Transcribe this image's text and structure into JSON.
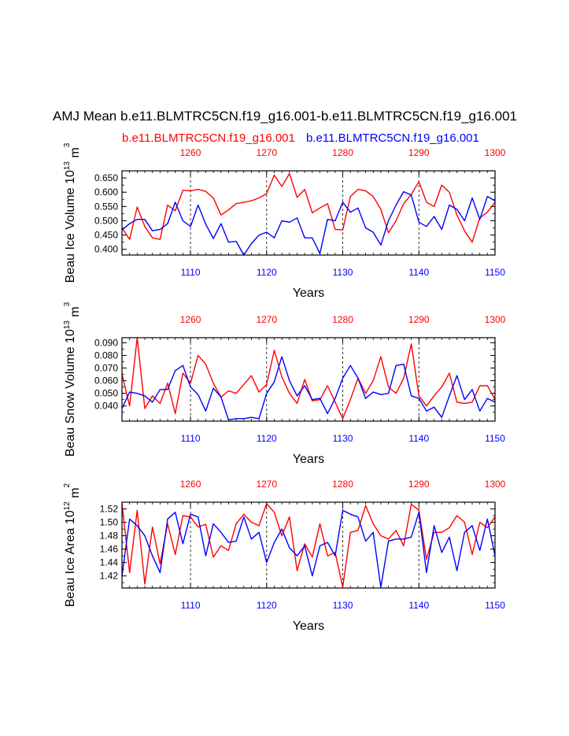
{
  "title": "AMJ Mean b.e11.BLMTRC5CN.f19_g16.001-b.e11.BLMTRC5CN.f19_g16.001",
  "legend": {
    "red_label": "b.e11.BLMTRC5CN.f19_g16.001",
    "blue_label": "b.e11.BLMTRC5CN.f19_g16.001"
  },
  "colors": {
    "red": "#ff0000",
    "blue": "#0000ff",
    "grid": "#000000"
  },
  "chart_data": [
    {
      "type": "line",
      "ylabel": "Beau Ice Volume 10",
      "ylabel_exp1": "13",
      "ylabel_unit": " m",
      "ylabel_exp2": "3",
      "xlabel": "Years",
      "ylim": [
        0.38,
        0.675
      ],
      "yticks": [
        0.4,
        0.45,
        0.5,
        0.55,
        0.6,
        0.65
      ],
      "ytick_labels": [
        "0.400",
        "0.450",
        "0.500",
        "0.550",
        "0.600",
        "0.650"
      ],
      "xlim_bottom": [
        1101,
        1150
      ],
      "xticks_bottom": [
        1110,
        1120,
        1130,
        1140,
        1150
      ],
      "xlim_top": [
        1251,
        1300
      ],
      "xticks_top": [
        1260,
        1270,
        1280,
        1290,
        1300
      ],
      "series": [
        {
          "name": "b.e11.BLMTRC5CN.f19_g16.001",
          "color": "red",
          "x": [
            1251,
            1252,
            1253,
            1254,
            1255,
            1256,
            1257,
            1258,
            1259,
            1260,
            1261,
            1262,
            1263,
            1264,
            1265,
            1266,
            1267,
            1268,
            1269,
            1270,
            1271,
            1272,
            1273,
            1274,
            1275,
            1276,
            1277,
            1278,
            1279,
            1280,
            1281,
            1282,
            1283,
            1284,
            1285,
            1286,
            1287,
            1288,
            1289,
            1290,
            1291,
            1292,
            1293,
            1294,
            1295,
            1296,
            1297,
            1298,
            1299,
            1300
          ],
          "y": [
            0.475,
            0.435,
            0.548,
            0.48,
            0.44,
            0.435,
            0.555,
            0.535,
            0.607,
            0.605,
            0.61,
            0.603,
            0.58,
            0.52,
            0.538,
            0.56,
            0.565,
            0.57,
            0.58,
            0.595,
            0.66,
            0.62,
            0.665,
            0.582,
            0.61,
            0.528,
            0.545,
            0.56,
            0.47,
            0.468,
            0.585,
            0.61,
            0.605,
            0.585,
            0.54,
            0.458,
            0.5,
            0.56,
            0.592,
            0.637,
            0.565,
            0.55,
            0.625,
            0.6,
            0.52,
            0.465,
            0.425,
            0.51,
            0.53,
            0.565
          ]
        },
        {
          "name": "b.e11.BLMTRC5CN.f19_g16.001",
          "color": "blue",
          "x": [
            1101,
            1102,
            1103,
            1104,
            1105,
            1106,
            1107,
            1108,
            1109,
            1110,
            1111,
            1112,
            1113,
            1114,
            1115,
            1116,
            1117,
            1118,
            1119,
            1120,
            1121,
            1122,
            1123,
            1124,
            1125,
            1126,
            1127,
            1128,
            1129,
            1130,
            1131,
            1132,
            1133,
            1134,
            1135,
            1136,
            1137,
            1138,
            1139,
            1140,
            1141,
            1142,
            1143,
            1144,
            1145,
            1146,
            1147,
            1148,
            1149,
            1150
          ],
          "y": [
            0.468,
            0.49,
            0.505,
            0.505,
            0.465,
            0.47,
            0.49,
            0.565,
            0.5,
            0.48,
            0.555,
            0.488,
            0.438,
            0.49,
            0.425,
            0.428,
            0.38,
            0.42,
            0.45,
            0.46,
            0.44,
            0.5,
            0.495,
            0.51,
            0.44,
            0.44,
            0.385,
            0.505,
            0.5,
            0.565,
            0.53,
            0.545,
            0.475,
            0.46,
            0.415,
            0.5,
            0.555,
            0.602,
            0.59,
            0.495,
            0.48,
            0.515,
            0.47,
            0.555,
            0.54,
            0.5,
            0.58,
            0.505,
            0.585,
            0.57
          ]
        }
      ]
    },
    {
      "type": "line",
      "ylabel": "Beau Snow Volume 10",
      "ylabel_exp1": "13",
      "ylabel_unit": " m",
      "ylabel_exp2": "3",
      "xlabel": "Years",
      "ylim": [
        0.028,
        0.094
      ],
      "yticks": [
        0.04,
        0.05,
        0.06,
        0.07,
        0.08,
        0.09
      ],
      "ytick_labels": [
        "0.040",
        "0.050",
        "0.060",
        "0.070",
        "0.080",
        "0.090"
      ],
      "xlim_bottom": [
        1101,
        1150
      ],
      "xticks_bottom": [
        1110,
        1120,
        1130,
        1140,
        1150
      ],
      "xlim_top": [
        1251,
        1300
      ],
      "xticks_top": [
        1260,
        1270,
        1280,
        1290,
        1300
      ],
      "series": [
        {
          "name": "b.e11.BLMTRC5CN.f19_g16.001",
          "color": "red",
          "x": [
            1251,
            1252,
            1253,
            1254,
            1255,
            1256,
            1257,
            1258,
            1259,
            1260,
            1261,
            1262,
            1263,
            1264,
            1265,
            1266,
            1267,
            1268,
            1269,
            1270,
            1271,
            1272,
            1273,
            1274,
            1275,
            1276,
            1277,
            1278,
            1279,
            1280,
            1281,
            1282,
            1283,
            1284,
            1285,
            1286,
            1287,
            1288,
            1289,
            1290,
            1291,
            1292,
            1293,
            1294,
            1295,
            1296,
            1297,
            1298,
            1299,
            1300
          ],
          "y": [
            0.065,
            0.04,
            0.094,
            0.038,
            0.048,
            0.042,
            0.058,
            0.034,
            0.066,
            0.058,
            0.08,
            0.073,
            0.058,
            0.047,
            0.052,
            0.05,
            0.057,
            0.064,
            0.051,
            0.057,
            0.084,
            0.063,
            0.05,
            0.042,
            0.061,
            0.044,
            0.045,
            0.056,
            0.043,
            0.03,
            0.045,
            0.062,
            0.05,
            0.06,
            0.079,
            0.055,
            0.05,
            0.062,
            0.089,
            0.048,
            0.04,
            0.048,
            0.055,
            0.066,
            0.043,
            0.042,
            0.043,
            0.056,
            0.056,
            0.045
          ]
        },
        {
          "name": "b.e11.BLMTRC5CN.f19_g16.001",
          "color": "blue",
          "x": [
            1101,
            1102,
            1103,
            1104,
            1105,
            1106,
            1107,
            1108,
            1109,
            1110,
            1111,
            1112,
            1113,
            1114,
            1115,
            1116,
            1117,
            1118,
            1119,
            1120,
            1121,
            1122,
            1123,
            1124,
            1125,
            1126,
            1127,
            1128,
            1129,
            1130,
            1131,
            1132,
            1133,
            1134,
            1135,
            1136,
            1137,
            1138,
            1139,
            1140,
            1141,
            1142,
            1143,
            1144,
            1145,
            1146,
            1147,
            1148,
            1149,
            1150
          ],
          "y": [
            0.038,
            0.051,
            0.05,
            0.048,
            0.043,
            0.053,
            0.053,
            0.068,
            0.072,
            0.055,
            0.049,
            0.036,
            0.054,
            0.047,
            0.029,
            0.03,
            0.03,
            0.031,
            0.03,
            0.05,
            0.059,
            0.079,
            0.06,
            0.048,
            0.056,
            0.045,
            0.046,
            0.034,
            0.046,
            0.062,
            0.072,
            0.062,
            0.046,
            0.051,
            0.049,
            0.05,
            0.072,
            0.073,
            0.048,
            0.046,
            0.036,
            0.039,
            0.031,
            0.048,
            0.064,
            0.045,
            0.053,
            0.036,
            0.046,
            0.043
          ]
        }
      ]
    },
    {
      "type": "line",
      "ylabel": "Beau Ice Area 10",
      "ylabel_exp1": "12",
      "ylabel_unit": " m",
      "ylabel_exp2": "2",
      "xlabel": "Years",
      "ylim": [
        1.402,
        1.53
      ],
      "yticks": [
        1.42,
        1.44,
        1.46,
        1.48,
        1.5,
        1.52
      ],
      "ytick_labels": [
        "1.42",
        "1.44",
        "1.46",
        "1.48",
        "1.50",
        "1.52"
      ],
      "xlim_bottom": [
        1101,
        1150
      ],
      "xticks_bottom": [
        1110,
        1120,
        1130,
        1140,
        1150
      ],
      "xlim_top": [
        1251,
        1300
      ],
      "xticks_top": [
        1260,
        1270,
        1280,
        1290,
        1300
      ],
      "series": [
        {
          "name": "b.e11.BLMTRC5CN.f19_g16.001",
          "color": "red",
          "x": [
            1251,
            1252,
            1253,
            1254,
            1255,
            1256,
            1257,
            1258,
            1259,
            1260,
            1261,
            1262,
            1263,
            1264,
            1265,
            1266,
            1267,
            1268,
            1269,
            1270,
            1271,
            1272,
            1273,
            1274,
            1275,
            1276,
            1277,
            1278,
            1279,
            1280,
            1281,
            1282,
            1283,
            1284,
            1285,
            1286,
            1287,
            1288,
            1289,
            1290,
            1291,
            1292,
            1293,
            1294,
            1295,
            1296,
            1297,
            1298,
            1299,
            1300
          ],
          "y": [
            1.528,
            1.425,
            1.518,
            1.408,
            1.493,
            1.438,
            1.498,
            1.452,
            1.51,
            1.508,
            1.493,
            1.497,
            1.448,
            1.465,
            1.458,
            1.498,
            1.512,
            1.5,
            1.495,
            1.528,
            1.515,
            1.48,
            1.508,
            1.428,
            1.468,
            1.448,
            1.498,
            1.45,
            1.455,
            1.403,
            1.485,
            1.488,
            1.525,
            1.498,
            1.48,
            1.475,
            1.488,
            1.465,
            1.527,
            1.518,
            1.445,
            1.485,
            1.485,
            1.492,
            1.51,
            1.5,
            1.452,
            1.5,
            1.492,
            1.508
          ]
        },
        {
          "name": "b.e11.BLMTRC5CN.f19_g16.001",
          "color": "blue",
          "x": [
            1101,
            1102,
            1103,
            1104,
            1105,
            1106,
            1107,
            1108,
            1109,
            1110,
            1111,
            1112,
            1113,
            1114,
            1115,
            1116,
            1117,
            1118,
            1119,
            1120,
            1121,
            1122,
            1123,
            1124,
            1125,
            1126,
            1127,
            1128,
            1129,
            1130,
            1131,
            1132,
            1133,
            1134,
            1135,
            1136,
            1137,
            1138,
            1139,
            1140,
            1141,
            1142,
            1143,
            1144,
            1145,
            1146,
            1147,
            1148,
            1149,
            1150
          ],
          "y": [
            1.42,
            1.505,
            1.495,
            1.48,
            1.45,
            1.425,
            1.505,
            1.515,
            1.468,
            1.512,
            1.508,
            1.45,
            1.498,
            1.485,
            1.47,
            1.472,
            1.508,
            1.475,
            1.485,
            1.44,
            1.47,
            1.49,
            1.462,
            1.45,
            1.465,
            1.42,
            1.465,
            1.47,
            1.45,
            1.518,
            1.512,
            1.508,
            1.472,
            1.485,
            1.403,
            1.472,
            1.475,
            1.475,
            1.478,
            1.515,
            1.425,
            1.495,
            1.455,
            1.478,
            1.428,
            1.485,
            1.495,
            1.458,
            1.505,
            1.45
          ]
        }
      ]
    }
  ]
}
